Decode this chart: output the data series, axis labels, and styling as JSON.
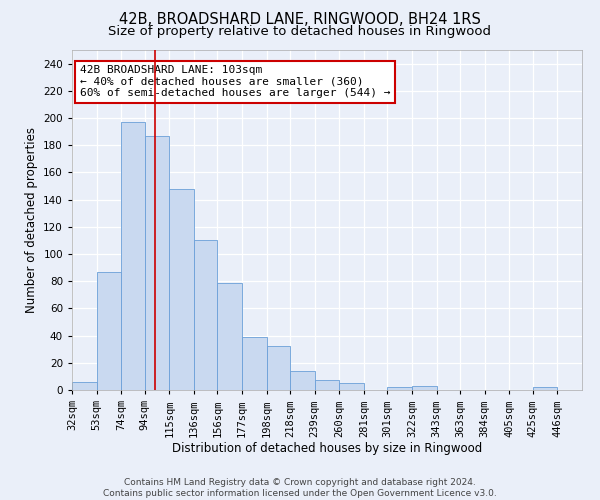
{
  "title": "42B, BROADSHARD LANE, RINGWOOD, BH24 1RS",
  "subtitle": "Size of property relative to detached houses in Ringwood",
  "xlabel": "Distribution of detached houses by size in Ringwood",
  "ylabel": "Number of detached properties",
  "bar_labels": [
    "32sqm",
    "53sqm",
    "74sqm",
    "94sqm",
    "115sqm",
    "136sqm",
    "156sqm",
    "177sqm",
    "198sqm",
    "218sqm",
    "239sqm",
    "260sqm",
    "281sqm",
    "301sqm",
    "322sqm",
    "343sqm",
    "363sqm",
    "384sqm",
    "405sqm",
    "425sqm",
    "446sqm"
  ],
  "bar_heights": [
    6,
    87,
    197,
    187,
    148,
    110,
    79,
    39,
    32,
    14,
    7,
    5,
    0,
    2,
    3,
    0,
    0,
    0,
    0,
    2,
    0
  ],
  "bar_color": "#c9d9f0",
  "bar_edge_color": "#6a9fd8",
  "bin_edges": [
    32,
    53,
    74,
    94,
    115,
    136,
    156,
    177,
    198,
    218,
    239,
    260,
    281,
    301,
    322,
    343,
    363,
    384,
    405,
    425,
    446,
    467
  ],
  "ylim": [
    0,
    250
  ],
  "yticks": [
    0,
    20,
    40,
    60,
    80,
    100,
    120,
    140,
    160,
    180,
    200,
    220,
    240
  ],
  "property_size": 103,
  "red_line_color": "#cc0000",
  "annotation_text": "42B BROADSHARD LANE: 103sqm\n← 40% of detached houses are smaller (360)\n60% of semi-detached houses are larger (544) →",
  "annotation_box_color": "#ffffff",
  "annotation_box_edge_color": "#cc0000",
  "bg_color": "#eaeff9",
  "footer_text": "Contains HM Land Registry data © Crown copyright and database right 2024.\nContains public sector information licensed under the Open Government Licence v3.0.",
  "title_fontsize": 10.5,
  "subtitle_fontsize": 9.5,
  "axis_label_fontsize": 8.5,
  "tick_fontsize": 7.5,
  "annotation_fontsize": 8
}
